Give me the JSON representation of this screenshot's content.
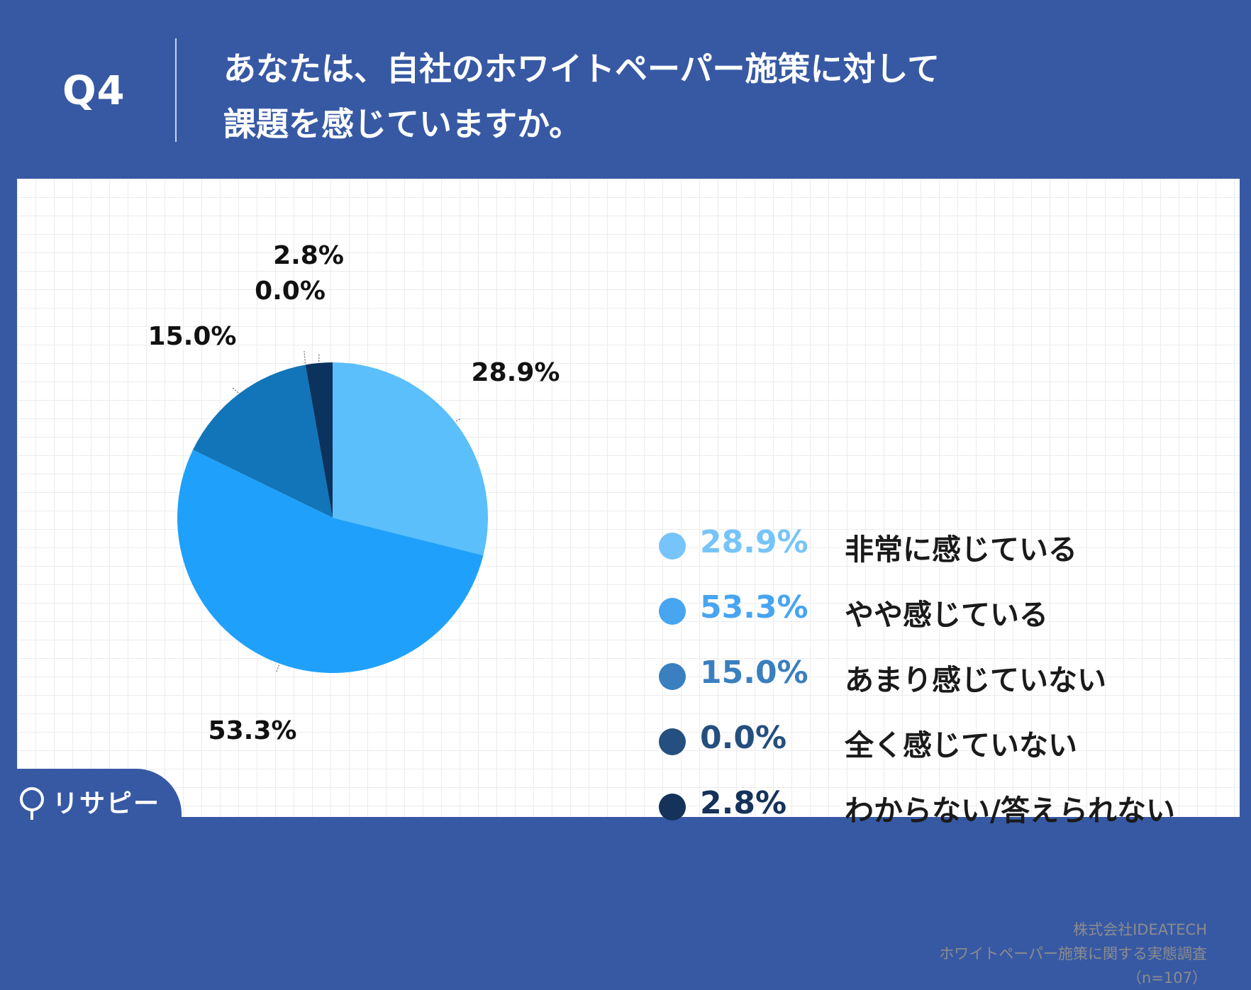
{
  "header": {
    "question_number": "Q4",
    "question_line1": "あなたは、自社のホワイトペーパー施策に対して",
    "question_line2": "課題を感じていますか。"
  },
  "chart_data": {
    "type": "pie",
    "categories": [
      "非常に感じている",
      "やや感じている",
      "あまり感じていない",
      "全く感じていない",
      "わからない/答えられない"
    ],
    "values": [
      28.9,
      53.3,
      15.0,
      0.0,
      2.8
    ],
    "labels": [
      "28.9%",
      "53.3%",
      "15.0%",
      "0.0%",
      "2.8%"
    ],
    "colors": [
      "#5bbffc",
      "#1fa1fb",
      "#1275b9",
      "#1f5b8e",
      "#0c335e"
    ],
    "start_angle": "12 o'clock, clockwise"
  },
  "legend": {
    "items": [
      {
        "pct": "28.9%",
        "label": "非常に感じている",
        "dot_color": "#76c4f9",
        "pct_color": "#76c4f9"
      },
      {
        "pct": "53.3%",
        "label": "やや感じている",
        "dot_color": "#47a5f1",
        "pct_color": "#47a5f1"
      },
      {
        "pct": "15.0%",
        "label": "あまり感じていない",
        "dot_color": "#3a7fbf",
        "pct_color": "#3a7fbf"
      },
      {
        "pct": "0.0%",
        "label": "全く感じていない",
        "dot_color": "#244f7e",
        "pct_color": "#244f7e"
      },
      {
        "pct": "2.8%",
        "label": "わからない/答えられない",
        "dot_color": "#14325a",
        "pct_color": "#14325a"
      }
    ]
  },
  "source": {
    "company": "株式会社IDEATECH",
    "survey": "ホワイトペーパー施策に関する実態調査",
    "sample": "（n=107）"
  },
  "brand": {
    "name": "リサピー",
    "icon": "pin-icon"
  }
}
